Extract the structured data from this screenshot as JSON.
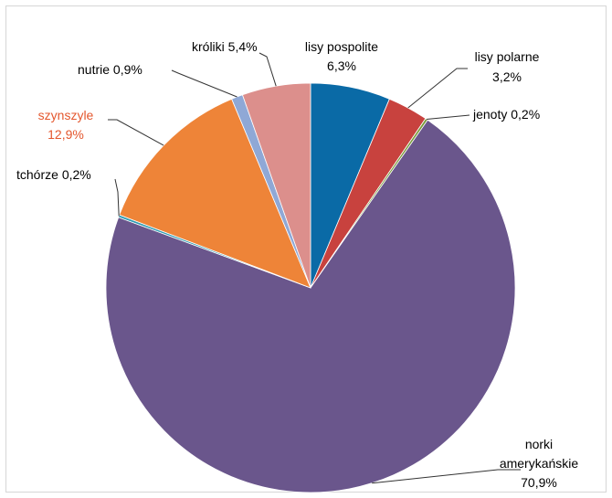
{
  "chart_data": {
    "type": "pie",
    "title": "",
    "start_angle_deg": 0,
    "direction": "clockwise",
    "slices": [
      {
        "label": "lisy pospolite",
        "value_text": "6,3%",
        "value": 6.3,
        "color": "#0a6aa6",
        "label_color": "#333333"
      },
      {
        "label": "lisy polarne",
        "value_text": "3,2%",
        "value": 3.2,
        "color": "#c8423e",
        "label_color": "#333333"
      },
      {
        "label": "jenoty",
        "value_text": "0,2%",
        "value": 0.2,
        "color": "#7a9a3a",
        "label_color": "#333333"
      },
      {
        "label": "norki amerykańskie",
        "value_text": "70,9%",
        "value": 70.9,
        "color": "#6a568c",
        "label_color": "#333333"
      },
      {
        "label": "tchórze",
        "value_text": "0,2%",
        "value": 0.2,
        "color": "#2f9bb1",
        "label_color": "#333333"
      },
      {
        "label": "szynszyle",
        "value_text": "12,9%",
        "value": 12.9,
        "color": "#ee8438",
        "label_color": "#e4572e"
      },
      {
        "label": "nutrie",
        "value_text": "0,9%",
        "value": 0.9,
        "color": "#8fa8d6",
        "label_color": "#333333"
      },
      {
        "label": "króliki",
        "value_text": "5,4%",
        "value": 5.4,
        "color": "#dc8f8c",
        "label_color": "#333333"
      }
    ]
  }
}
